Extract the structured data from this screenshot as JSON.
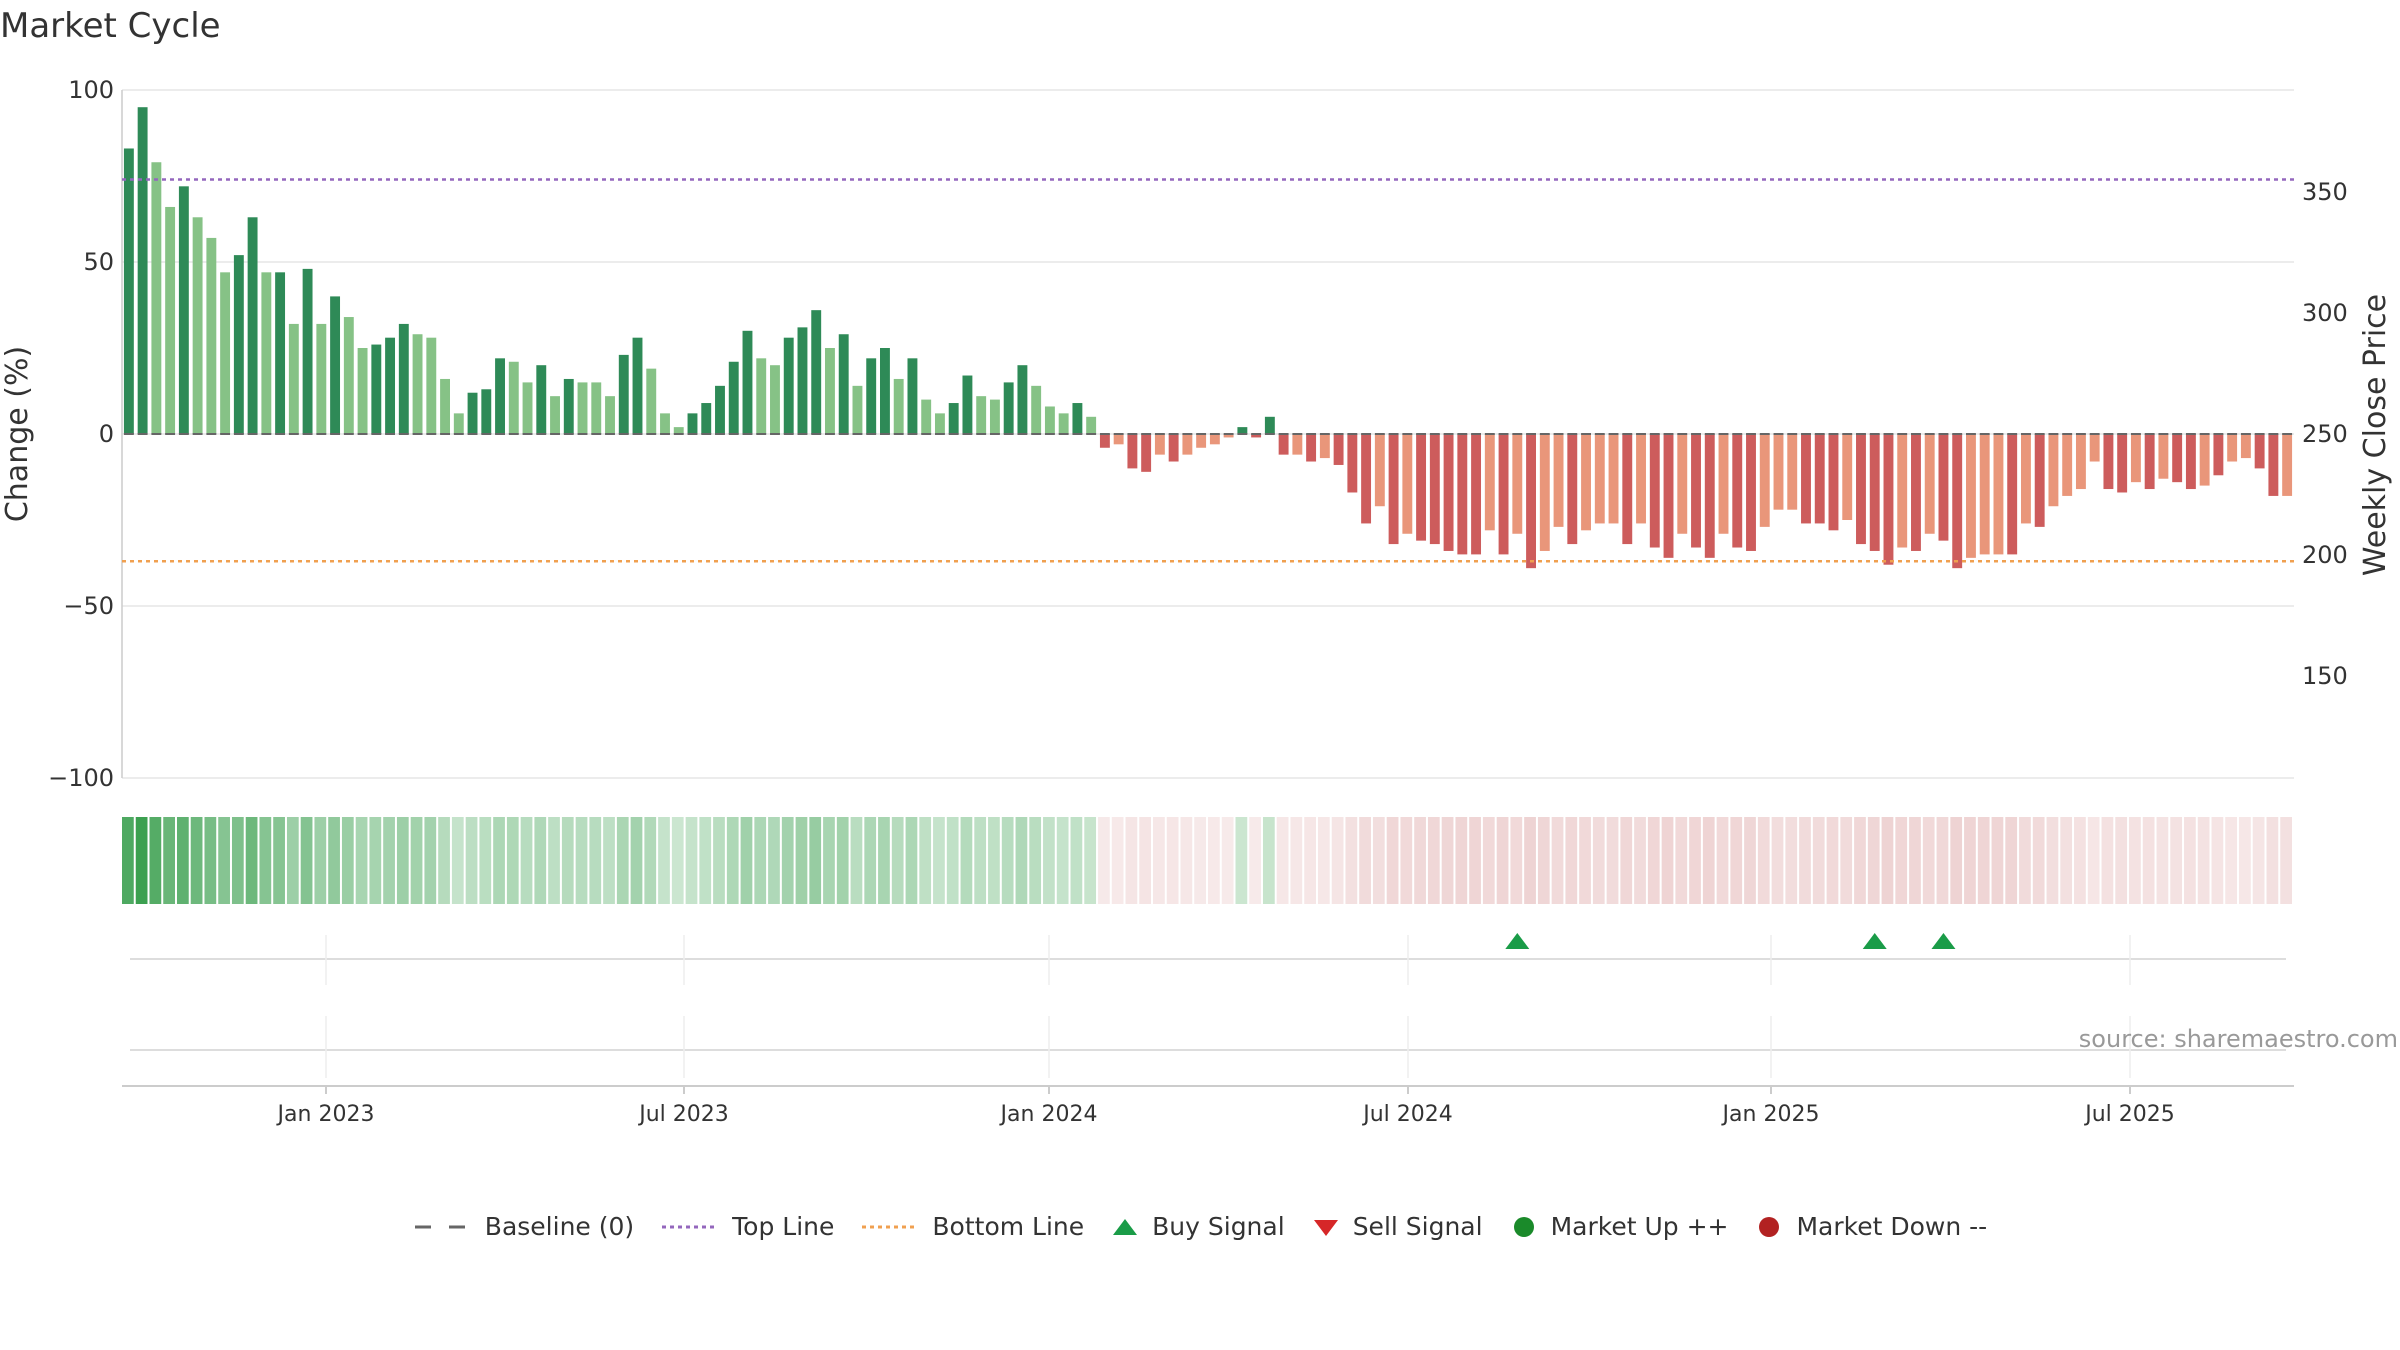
{
  "title": "Market Cycle",
  "source": "source: sharemaestro.com",
  "colors": {
    "up_strong": "#2e8a57",
    "up_light": "#86c286",
    "down_strong": "#cd5c5c",
    "down_light": "#e9967a",
    "top_line": "#9467bd",
    "bottom_line": "#f0a050",
    "baseline": "#666666",
    "buy": "#1a9c48",
    "sell": "#d62728",
    "market_up": "#1a8a2a",
    "market_down": "#b22222"
  },
  "legend": [
    {
      "key": "baseline",
      "label": "Baseline (0)",
      "symbol": "dash"
    },
    {
      "key": "top_line",
      "label": "Top Line",
      "symbol": "dotted"
    },
    {
      "key": "bottom_line",
      "label": "Bottom Line",
      "symbol": "dotted"
    },
    {
      "key": "buy",
      "label": "Buy Signal",
      "symbol": "triangle-up"
    },
    {
      "key": "sell",
      "label": "Sell Signal",
      "symbol": "triangle-down"
    },
    {
      "key": "market_up",
      "label": "Market Up ++",
      "symbol": "circle"
    },
    {
      "key": "market_down",
      "label": "Market Down --",
      "symbol": "circle"
    }
  ],
  "chart_data": {
    "type": "bar",
    "title": "Market Cycle",
    "ylabel": "Change (%)",
    "y2label": "Weekly Close Price",
    "ylim": [
      -100,
      100
    ],
    "yticks": [
      100,
      50,
      0,
      -50,
      -100
    ],
    "y2ticks": [
      350,
      300,
      250,
      200,
      150
    ],
    "xticks": [
      "Jan 2023",
      "Jul 2023",
      "Jan 2024",
      "Jul 2024",
      "Jan 2025",
      "Jul 2025"
    ],
    "top_line": 74,
    "bottom_line": -37,
    "baseline": 0,
    "series": [
      {
        "values": [
          83,
          95,
          79,
          66,
          72,
          63,
          57,
          47,
          52,
          63,
          47,
          47,
          32,
          48,
          32,
          40,
          34,
          25,
          26,
          28,
          32,
          29,
          28,
          16,
          6,
          12,
          13,
          22,
          21,
          15,
          20,
          11,
          16,
          15,
          15,
          11,
          23,
          28,
          19,
          6,
          2,
          6,
          9,
          14,
          21,
          30,
          22,
          20,
          28,
          31,
          36,
          25,
          29,
          14,
          22,
          25,
          16,
          22,
          10,
          6,
          9,
          17,
          11,
          10,
          15,
          20,
          14,
          8,
          6,
          9,
          5,
          -4,
          -3,
          -10,
          -11,
          -6,
          -8,
          -6,
          -4,
          -3,
          -1,
          2,
          -1,
          5,
          -6,
          -6,
          -8,
          -7,
          -9,
          -17,
          -26,
          -21,
          -32,
          -29,
          -31,
          -32,
          -34,
          -35,
          -35,
          -28,
          -35,
          -29,
          -39,
          -34,
          -27,
          -32,
          -28,
          -26,
          -26,
          -32,
          -26,
          -33,
          -36,
          -29,
          -33,
          -36,
          -29,
          -33,
          -34,
          -27,
          -22,
          -22,
          -26,
          -26,
          -28,
          -25,
          -32,
          -34,
          -38,
          -33,
          -34,
          -29,
          -31,
          -39,
          -36,
          -35,
          -35,
          -35,
          -26,
          -27,
          -21,
          -18,
          -16,
          -8,
          -16,
          -17,
          -14,
          -16,
          -13,
          -14,
          -16,
          -15,
          -12,
          -8,
          -7,
          -10,
          -18,
          -18
        ],
        "strength": [
          1,
          1,
          0,
          0,
          1,
          0,
          0,
          0,
          1,
          1,
          0,
          1,
          0,
          1,
          0,
          1,
          0,
          0,
          1,
          1,
          1,
          0,
          0,
          0,
          0,
          1,
          1,
          1,
          0,
          0,
          1,
          0,
          1,
          0,
          0,
          0,
          1,
          1,
          0,
          0,
          0,
          1,
          1,
          1,
          1,
          1,
          0,
          0,
          1,
          1,
          1,
          0,
          1,
          0,
          1,
          1,
          0,
          1,
          0,
          0,
          1,
          1,
          0,
          0,
          1,
          1,
          0,
          0,
          0,
          1,
          0,
          1,
          0,
          1,
          1,
          0,
          1,
          0,
          0,
          0,
          0,
          1,
          1,
          1,
          1,
          0,
          1,
          0,
          1,
          1,
          1,
          0,
          1,
          0,
          1,
          1,
          1,
          1,
          1,
          0,
          1,
          0,
          1,
          0,
          0,
          1,
          0,
          0,
          0,
          1,
          0,
          1,
          1,
          0,
          1,
          1,
          0,
          1,
          1,
          0,
          0,
          0,
          1,
          1,
          1,
          0,
          1,
          1,
          1,
          0,
          1,
          0,
          1,
          1,
          0,
          0,
          0,
          1,
          0,
          1,
          0,
          0,
          0,
          0,
          1,
          1,
          0,
          1,
          0,
          1,
          1,
          0,
          1,
          0,
          0,
          1,
          1,
          0
        ]
      }
    ],
    "buy_signals": [
      101,
      127,
      132
    ],
    "sell_signals": []
  }
}
